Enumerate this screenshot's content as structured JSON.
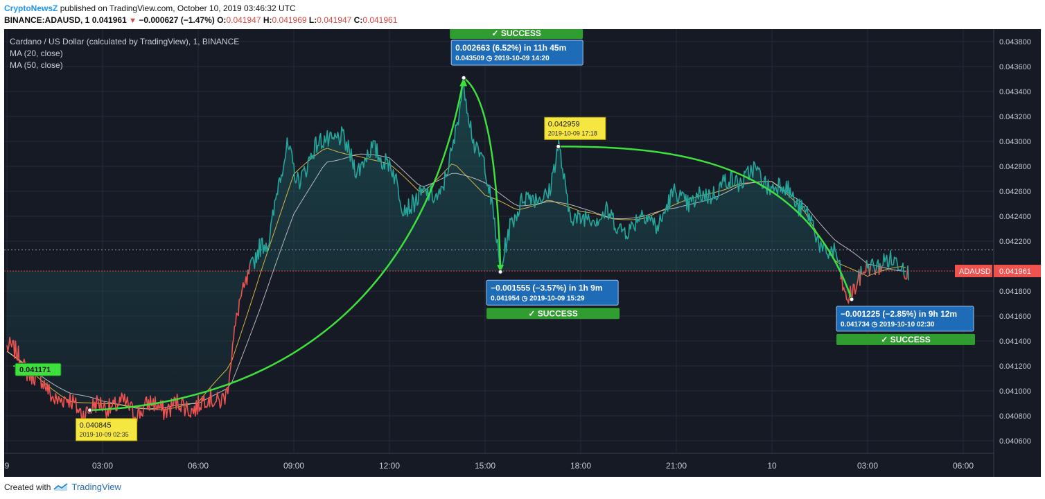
{
  "header": {
    "author": "CryptoNewsZ",
    "published_text": "published on TradingView.com, October 10, 2019 03:46:32 UTC",
    "symbol": "BINANCE:ADAUSD, 1",
    "last": "0.041961",
    "change": "−0.000627 (−1.47%)",
    "open_label": "O:",
    "open": "0.041947",
    "high_label": "H:",
    "high": "0.041969",
    "low_label": "L:",
    "low": "0.041947",
    "close_label": "C:",
    "close": "0.041961"
  },
  "legend": {
    "title": "Cardano / US Dollar (calculated by TradingView), 1, BINANCE",
    "ma20": "MA (20, close)",
    "ma50": "MA (50, close)"
  },
  "price_tag": {
    "symbol": "ADAUSD",
    "value": "0.041961"
  },
  "annotations": {
    "low_start": {
      "price": "0.040845",
      "time": "2019-10-09 02:35"
    },
    "high_mid": {
      "price": "0.042959",
      "time": "2019-10-09 17:18"
    },
    "left_tag": "0.041171",
    "up_box": {
      "line1": "0.002663 (6.52%) in 11h 45m",
      "price": "0.043509",
      "time": "2019-10-09  14:20",
      "badge": "SUCCESS"
    },
    "down_box1": {
      "line1": "−0.001555 (−3.57%) in 1h 9m",
      "price": "0.041954",
      "time": "2019-10-09  15:29",
      "badge": "SUCCESS"
    },
    "down_box2": {
      "line1": "−0.001225 (−2.85%) in 9h 12m",
      "price": "0.041734",
      "time": "2019-10-10  02:30",
      "badge": "SUCCESS"
    }
  },
  "footer": {
    "created_with": "Created with",
    "brand": "TradingView"
  },
  "chart_data": {
    "type": "line",
    "title": "Cardano / US Dollar (calculated by TradingView), 1, BINANCE",
    "ylim": [
      0.0405,
      0.0439
    ],
    "y_ticks": [
      "0.043800",
      "0.043600",
      "0.043400",
      "0.043200",
      "0.043000",
      "0.042800",
      "0.042600",
      "0.042400",
      "0.042200",
      "0.041800",
      "0.041600",
      "0.041400",
      "0.041200",
      "0.041000",
      "0.040800",
      "0.040600"
    ],
    "x_ticks": [
      "9",
      "03:00",
      "06:00",
      "09:00",
      "12:00",
      "15:00",
      "18:00",
      "21:00",
      "10",
      "03:00",
      "06:00"
    ],
    "grid": true,
    "series": [
      {
        "name": "ADAUSD",
        "x_hours": [
          0.0,
          0.6,
          1.2,
          1.9,
          2.6,
          3.2,
          4.0,
          4.8,
          5.5,
          6.2,
          6.9,
          7.3,
          7.6,
          7.9,
          8.2,
          8.5,
          8.8,
          9.1,
          9.5,
          10.0,
          10.5,
          11.0,
          11.5,
          12.0,
          12.4,
          12.8,
          13.2,
          13.6,
          14.0,
          14.33,
          14.7,
          15.0,
          15.3,
          15.48,
          15.8,
          16.2,
          16.6,
          17.0,
          17.3,
          17.6,
          18.0,
          18.4,
          18.8,
          19.2,
          19.8,
          20.4,
          21.0,
          21.6,
          22.2,
          22.8,
          23.4,
          24.0,
          24.6,
          25.2,
          25.6,
          26.0,
          26.3,
          26.5,
          26.8,
          27.1,
          27.5,
          27.8,
          28.1,
          28.3
        ],
        "values": [
          0.04135,
          0.0412,
          0.04102,
          0.0409,
          0.04084,
          0.0409,
          0.04085,
          0.04088,
          0.04087,
          0.0409,
          0.04098,
          0.04172,
          0.04198,
          0.0421,
          0.04219,
          0.04268,
          0.04292,
          0.0427,
          0.04285,
          0.04305,
          0.043,
          0.0428,
          0.04292,
          0.04285,
          0.04246,
          0.04255,
          0.04255,
          0.0426,
          0.04291,
          0.04351,
          0.0429,
          0.0428,
          0.0424,
          0.04195,
          0.0423,
          0.0426,
          0.0425,
          0.04262,
          0.04296,
          0.04245,
          0.0424,
          0.04235,
          0.04248,
          0.04225,
          0.0424,
          0.04235,
          0.04258,
          0.0425,
          0.04262,
          0.04268,
          0.04275,
          0.04265,
          0.0426,
          0.04235,
          0.04215,
          0.04208,
          0.04175,
          0.04182,
          0.0419,
          0.042,
          0.04205,
          0.042,
          0.04205,
          0.04196
        ]
      },
      {
        "name": "MA (20, close)",
        "x_hours": [
          0,
          1,
          2,
          3,
          4,
          5,
          6,
          7,
          8,
          9,
          10,
          11,
          12,
          13,
          14,
          15,
          16,
          17,
          18,
          19,
          20,
          21,
          22,
          23,
          24,
          25,
          26,
          27,
          28
        ],
        "values": [
          0.0413,
          0.0411,
          0.04093,
          0.04088,
          0.04087,
          0.04087,
          0.04089,
          0.0412,
          0.042,
          0.04272,
          0.04295,
          0.0429,
          0.0428,
          0.04258,
          0.04285,
          0.04255,
          0.04245,
          0.04255,
          0.04242,
          0.04238,
          0.0424,
          0.04248,
          0.04258,
          0.04268,
          0.04266,
          0.04245,
          0.04205,
          0.0419,
          0.042
        ]
      },
      {
        "name": "MA (50, close)",
        "x_hours": [
          0,
          1,
          2,
          3,
          4,
          5,
          6,
          7,
          8,
          9,
          10,
          11,
          12,
          13,
          14,
          15,
          16,
          17,
          18,
          19,
          20,
          21,
          22,
          23,
          24,
          25,
          26,
          27,
          28
        ],
        "values": [
          0.0413,
          0.04115,
          0.04098,
          0.0409,
          0.04088,
          0.04087,
          0.04088,
          0.04105,
          0.0417,
          0.0424,
          0.04285,
          0.0429,
          0.04285,
          0.04265,
          0.04275,
          0.04265,
          0.0425,
          0.04252,
          0.04245,
          0.0424,
          0.0424,
          0.04245,
          0.04255,
          0.04265,
          0.04266,
          0.04252,
          0.0422,
          0.042,
          0.04198
        ]
      }
    ],
    "reference_line": 0.041961
  }
}
